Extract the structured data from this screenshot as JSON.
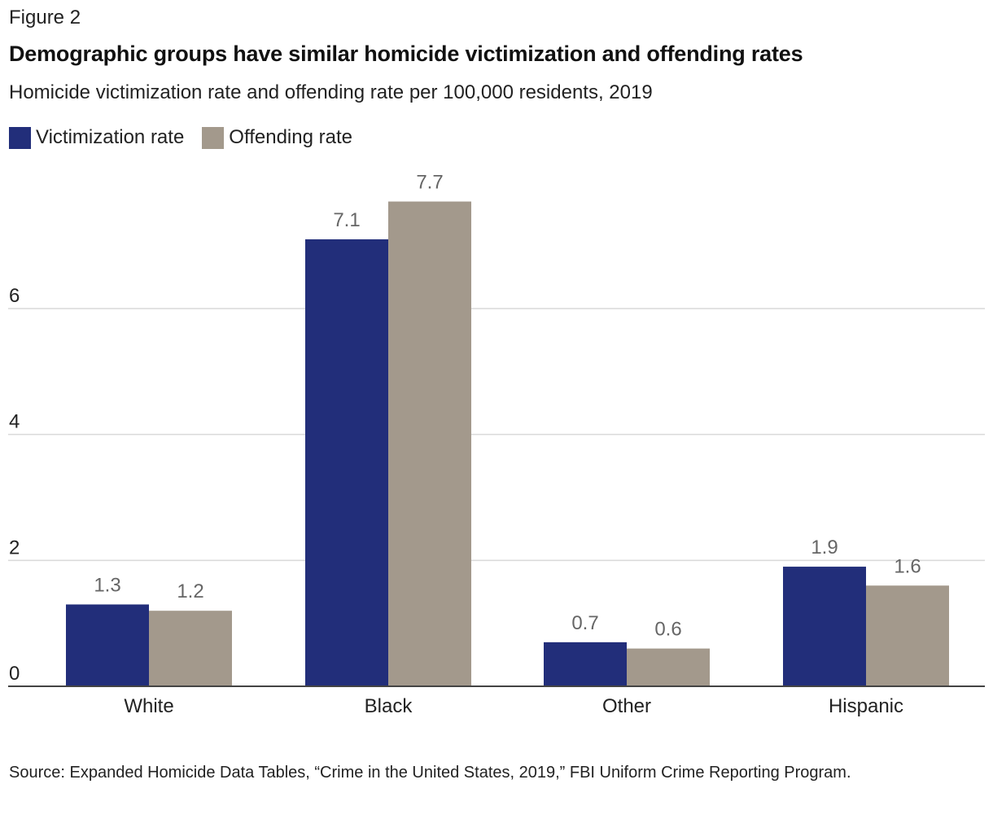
{
  "figure_label": "Figure 2",
  "colors": {
    "victimization": "#222e7a",
    "offending": "#a3998c",
    "grid": "#d9d9d9",
    "axis": "#444444",
    "data_label": "#666666"
  },
  "chart_data": {
    "type": "bar",
    "title": "Demographic groups have similar homicide victimization and offending rates",
    "subtitle": "Homicide victimization rate and offending rate per 100,000 residents, 2019",
    "categories": [
      "White",
      "Black",
      "Other",
      "Hispanic"
    ],
    "series": [
      {
        "name": "Victimization rate",
        "values": [
          1.3,
          7.1,
          0.7,
          1.9
        ]
      },
      {
        "name": "Offending rate",
        "values": [
          1.2,
          7.7,
          0.6,
          1.6
        ]
      }
    ],
    "y_ticks": [
      0,
      2,
      4,
      6
    ],
    "ylim": [
      0,
      8.6
    ],
    "grid": true,
    "legend_position": "top-left",
    "source": "Source: Expanded Homicide Data Tables, “Crime in the United States, 2019,” FBI Uniform Crime Reporting Program."
  }
}
